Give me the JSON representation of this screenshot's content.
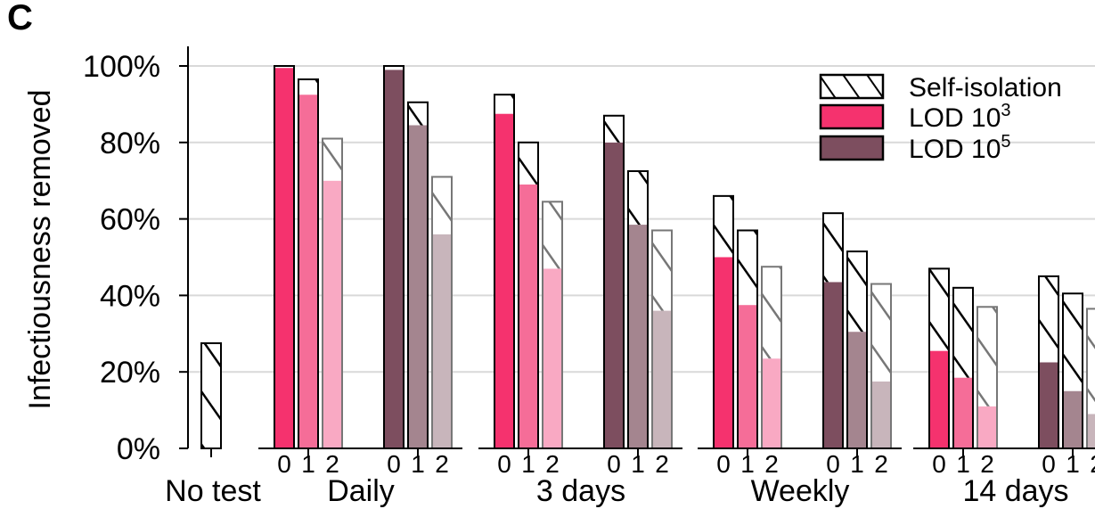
{
  "panel_label": "C",
  "chart_data": {
    "type": "bar",
    "stacked": true,
    "ylabel": "Infectiousness removed",
    "ylim": [
      0,
      100
    ],
    "yticks": [
      "0%",
      "20%",
      "40%",
      "60%",
      "80%",
      "100%"
    ],
    "grid": true,
    "legend_position": "top-right",
    "legend": [
      {
        "key": "self-isolation",
        "label": "Self-isolation",
        "color": "#ffffff",
        "hatch": true
      },
      {
        "key": "lod3",
        "label": "LOD 10",
        "sup": "3",
        "color": "#f5326e"
      },
      {
        "key": "lod5",
        "label": "LOD 10",
        "sup": "5",
        "color": "#7d4e5f"
      }
    ],
    "colors": {
      "lod3": [
        "#f5326e",
        "#f56d98",
        "#f9a9c3"
      ],
      "lod5": [
        "#7d4e5f",
        "#a4858f",
        "#c8b5bb"
      ]
    },
    "no_test": {
      "label": "No test",
      "total": 27.5
    },
    "groups": [
      {
        "label": "Daily",
        "lod3": {
          "test": [
            99.5,
            92.5,
            70
          ],
          "total": [
            100,
            96.5,
            81
          ]
        },
        "lod5": {
          "test": [
            99,
            84.5,
            56
          ],
          "total": [
            100,
            90.5,
            71
          ]
        }
      },
      {
        "label": "3 days",
        "lod3": {
          "test": [
            87.5,
            69,
            47
          ],
          "total": [
            92.5,
            80,
            64.5
          ]
        },
        "lod5": {
          "test": [
            80,
            58.5,
            36
          ],
          "total": [
            87,
            72.5,
            57
          ]
        }
      },
      {
        "label": "Weekly",
        "lod3": {
          "test": [
            50,
            37.5,
            23.5
          ],
          "total": [
            66,
            57,
            47.5
          ]
        },
        "lod5": {
          "test": [
            43.5,
            30.5,
            17.5
          ],
          "total": [
            61.5,
            51.5,
            43
          ]
        }
      },
      {
        "label": "14 days",
        "lod3": {
          "test": [
            25.5,
            18.5,
            11
          ],
          "total": [
            47,
            42,
            37
          ]
        },
        "lod5": {
          "test": [
            22.5,
            15,
            9
          ],
          "total": [
            45,
            40.5,
            36.5
          ]
        }
      }
    ],
    "sub_labels": [
      "0",
      "1",
      "2"
    ]
  }
}
